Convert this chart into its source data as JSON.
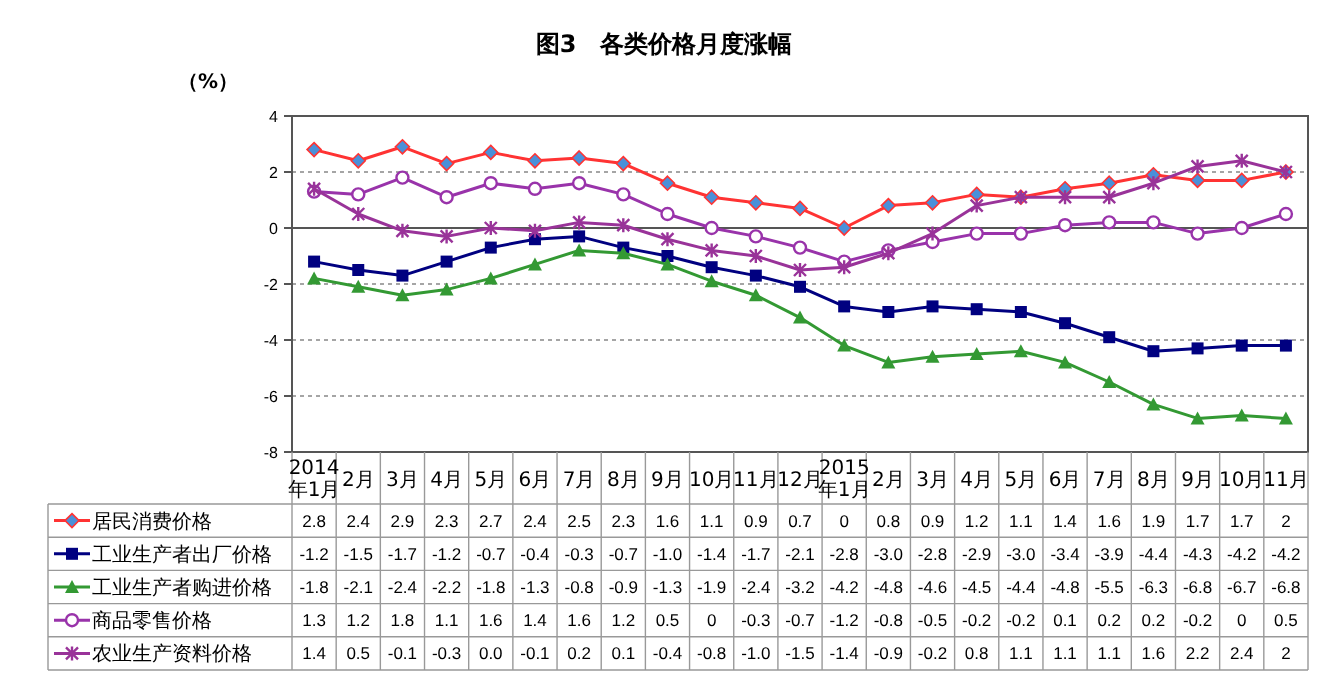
{
  "chart_data": {
    "type": "line",
    "title": "图3　各类价格月度涨幅",
    "ylabel": "（%）",
    "categories": [
      "2014年1月",
      "2月",
      "3月",
      "4月",
      "5月",
      "6月",
      "7月",
      "8月",
      "9月",
      "10月",
      "11月",
      "12月",
      "2015年1月",
      "2月",
      "3月",
      "4月",
      "5月",
      "6月",
      "7月",
      "8月",
      "9月",
      "10月",
      "11月"
    ],
    "ylim": [
      -8,
      4
    ],
    "yticks": [
      -8,
      -6,
      -4,
      -2,
      0,
      2,
      4
    ],
    "grid": "y",
    "legend": "bottom",
    "series": [
      {
        "name": "居民消费价格",
        "color": "#ff3333",
        "marker": "diamond",
        "values": [
          2.8,
          2.4,
          2.9,
          2.3,
          2.7,
          2.4,
          2.5,
          2.3,
          1.6,
          1.1,
          0.9,
          0.7,
          0,
          0.8,
          0.9,
          1.2,
          1.1,
          1.4,
          1.6,
          1.9,
          1.7,
          1.7,
          2
        ],
        "value_labels": [
          "2.8",
          "2.4",
          "2.9",
          "2.3",
          "2.7",
          "2.4",
          "2.5",
          "2.3",
          "1.6",
          "1.1",
          "0.9",
          "0.7",
          "0",
          "0.8",
          "0.9",
          "1.2",
          "1.1",
          "1.4",
          "1.6",
          "1.9",
          "1.7",
          "1.7",
          "2"
        ]
      },
      {
        "name": "工业生产者出厂价格",
        "color": "#000080",
        "marker": "square",
        "values": [
          -1.2,
          -1.5,
          -1.7,
          -1.2,
          -0.7,
          -0.4,
          -0.3,
          -0.7,
          -1.0,
          -1.4,
          -1.7,
          -2.1,
          -2.8,
          -3.0,
          -2.8,
          -2.9,
          -3.0,
          -3.4,
          -3.9,
          -4.4,
          -4.3,
          -4.2,
          -4.2
        ],
        "value_labels": [
          "-1.2",
          "-1.5",
          "-1.7",
          "-1.2",
          "-0.7",
          "-0.4",
          "-0.3",
          "-0.7",
          "-1.0",
          "-1.4",
          "-1.7",
          "-2.1",
          "-2.8",
          "-3.0",
          "-2.8",
          "-2.9",
          "-3.0",
          "-3.4",
          "-3.9",
          "-4.4",
          "-4.3",
          "-4.2",
          "-4.2"
        ]
      },
      {
        "name": "工业生产者购进价格",
        "color": "#339933",
        "marker": "triangle",
        "values": [
          -1.8,
          -2.1,
          -2.4,
          -2.2,
          -1.8,
          -1.3,
          -0.8,
          -0.9,
          -1.3,
          -1.9,
          -2.4,
          -3.2,
          -4.2,
          -4.8,
          -4.6,
          -4.5,
          -4.4,
          -4.8,
          -5.5,
          -6.3,
          -6.8,
          -6.7,
          -6.8
        ],
        "value_labels": [
          "-1.8",
          "-2.1",
          "-2.4",
          "-2.2",
          "-1.8",
          "-1.3",
          "-0.8",
          "-0.9",
          "-1.3",
          "-1.9",
          "-2.4",
          "-3.2",
          "-4.2",
          "-4.8",
          "-4.6",
          "-4.5",
          "-4.4",
          "-4.8",
          "-5.5",
          "-6.3",
          "-6.8",
          "-6.7",
          "-6.8"
        ]
      },
      {
        "name": "商品零售价格",
        "color": "#9933aa",
        "marker": "circle",
        "values": [
          1.3,
          1.2,
          1.8,
          1.1,
          1.6,
          1.4,
          1.6,
          1.2,
          0.5,
          0,
          -0.3,
          -0.7,
          -1.2,
          -0.8,
          -0.5,
          -0.2,
          -0.2,
          0.1,
          0.2,
          0.2,
          -0.2,
          0,
          0.5
        ],
        "value_labels": [
          "1.3",
          "1.2",
          "1.8",
          "1.1",
          "1.6",
          "1.4",
          "1.6",
          "1.2",
          "0.5",
          "0",
          "-0.3",
          "-0.7",
          "-1.2",
          "-0.8",
          "-0.5",
          "-0.2",
          "-0.2",
          "0.1",
          "0.2",
          "0.2",
          "-0.2",
          "0",
          "0.5"
        ]
      },
      {
        "name": "农业生产资料价格",
        "color": "#993399",
        "marker": "cross",
        "values": [
          1.4,
          0.5,
          -0.1,
          -0.3,
          0.0,
          -0.1,
          0.2,
          0.1,
          -0.4,
          -0.8,
          -1.0,
          -1.5,
          -1.4,
          -0.9,
          -0.2,
          0.8,
          1.1,
          1.1,
          1.1,
          1.6,
          2.2,
          2.4,
          2
        ],
        "value_labels": [
          "1.4",
          "0.5",
          "-0.1",
          "-0.3",
          "0.0",
          "-0.1",
          "0.2",
          "0.1",
          "-0.4",
          "-0.8",
          "-1.0",
          "-1.5",
          "-1.4",
          "-0.9",
          "-0.2",
          "0.8",
          "1.1",
          "1.1",
          "1.1",
          "1.6",
          "2.2",
          "2.4",
          "2"
        ]
      }
    ]
  }
}
